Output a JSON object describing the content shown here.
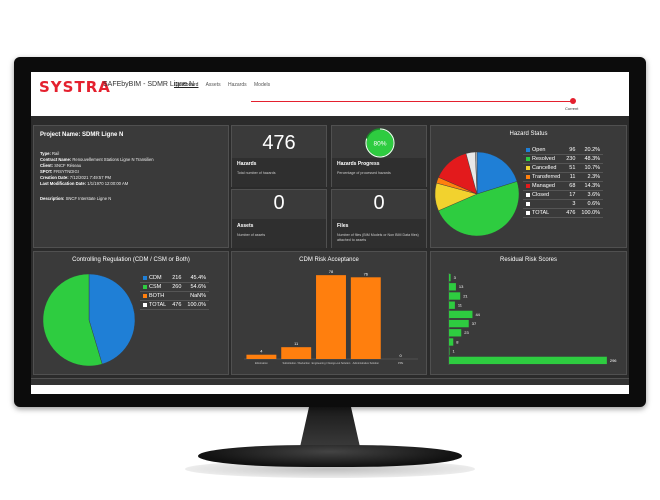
{
  "app": {
    "logo": "SYSTRA",
    "title": "SAFEbyBIM - SDMR Ligne N",
    "nav": [
      "Dashboard",
      "Assets",
      "Hazards",
      "Models"
    ],
    "progress_label": "Current"
  },
  "project": {
    "title": "Project Name: SDMR Ligne N",
    "rows": [
      {
        "label": "Type:",
        "value": "Rail"
      },
      {
        "label": "Contract Name:",
        "value": "Renouvellement Stations Ligne N Transilien"
      },
      {
        "label": "Client:",
        "value": "SNCF Réseau"
      },
      {
        "label": "SPOT:",
        "value": "FRSYTNDIGI"
      },
      {
        "label": "Creation Date:",
        "value": "7/12/2021 7:49:57 PM"
      },
      {
        "label": "Last Modification Date:",
        "value": "1/1/1970 12:00:00 AM"
      },
      {
        "label": "Description:",
        "value": "SNCF Interstate Ligne N"
      }
    ]
  },
  "hazards_card": {
    "value": "476",
    "label": "Hazards",
    "sub": "Total number of hazards"
  },
  "assets_card": {
    "value": "0",
    "label": "Assets",
    "sub": "Number of assets"
  },
  "progress_card": {
    "value": "80%",
    "label": "Hazards Progress",
    "sub": "Percentage of processed hazards",
    "fraction": 0.8
  },
  "files_card": {
    "value": "0",
    "label": "Files",
    "sub": "Number of files (BIM Models or Non BIM Data files) attached to assets"
  },
  "hazard_status": {
    "title": "Hazard Status",
    "rows": [
      {
        "name": "Open",
        "count": "96",
        "pct": "20.2%",
        "color": "#1f7fd6"
      },
      {
        "name": "Resolved",
        "count": "230",
        "pct": "48.3%",
        "color": "#2ecc40"
      },
      {
        "name": "Cancelled",
        "count": "51",
        "pct": "10.7%",
        "color": "#f2d22e"
      },
      {
        "name": "Transferred",
        "count": "11",
        "pct": "2.3%",
        "color": "#ff7f0e"
      },
      {
        "name": "Managed",
        "count": "68",
        "pct": "14.3%",
        "color": "#e31a1c"
      },
      {
        "name": "Closed",
        "count": "17",
        "pct": "3.6%",
        "color": "#ffffff"
      },
      {
        "name": "",
        "count": "3",
        "pct": "0.6%",
        "color": "#ffffff"
      },
      {
        "name": "TOTAL",
        "count": "476",
        "pct": "100.0%",
        "color": "#ffffff"
      }
    ]
  },
  "controlling_regulation": {
    "title": "Controlling Regulation (CDM / CSM or Both)",
    "rows": [
      {
        "name": "CDM",
        "count": "216",
        "pct": "45.4%",
        "color": "#1f7fd6"
      },
      {
        "name": "CSM",
        "count": "260",
        "pct": "54.6%",
        "color": "#2ecc40"
      },
      {
        "name": "BOTH",
        "count": "",
        "pct": "NaN%",
        "color": "#ff7f0e"
      },
      {
        "name": "TOTAL",
        "count": "476",
        "pct": "100.0%",
        "color": "#ffffff"
      }
    ]
  },
  "chart_data": [
    {
      "type": "pie",
      "title": "Hazard Status",
      "labels": [
        "Open",
        "Resolved",
        "Cancelled",
        "Transferred",
        "Managed",
        "Closed",
        ""
      ],
      "values": [
        96,
        230,
        51,
        11,
        68,
        17,
        3
      ],
      "colors": [
        "#1f7fd6",
        "#2ecc40",
        "#f2d22e",
        "#ff7f0e",
        "#e31a1c",
        "#e8e8e8",
        "#bbbbbb"
      ]
    },
    {
      "type": "pie",
      "title": "Controlling Regulation (CDM / CSM or Both)",
      "labels": [
        "CDM",
        "CSM"
      ],
      "values": [
        216,
        260
      ],
      "colors": [
        "#1f7fd6",
        "#2ecc40"
      ]
    },
    {
      "type": "bar",
      "title": "CDM Risk Acceptance",
      "categories": [
        "Elimination",
        "Substitution / Reduction",
        "Engineering / Design-out Solution",
        "Administrative Solution",
        "PPE"
      ],
      "values": [
        4,
        11,
        78,
        76,
        0
      ],
      "color": "#ff7f0e",
      "ylim": [
        0,
        80
      ]
    },
    {
      "type": "bar",
      "orientation": "horizontal",
      "title": "Residual Risk Scores",
      "categories": [
        "",
        "",
        "",
        "",
        "",
        "",
        "",
        "",
        "",
        ""
      ],
      "values": [
        3,
        13,
        21,
        11,
        44,
        37,
        23,
        8,
        1,
        296
      ],
      "color": "#2ecc40",
      "xlim": [
        0,
        300
      ]
    }
  ]
}
